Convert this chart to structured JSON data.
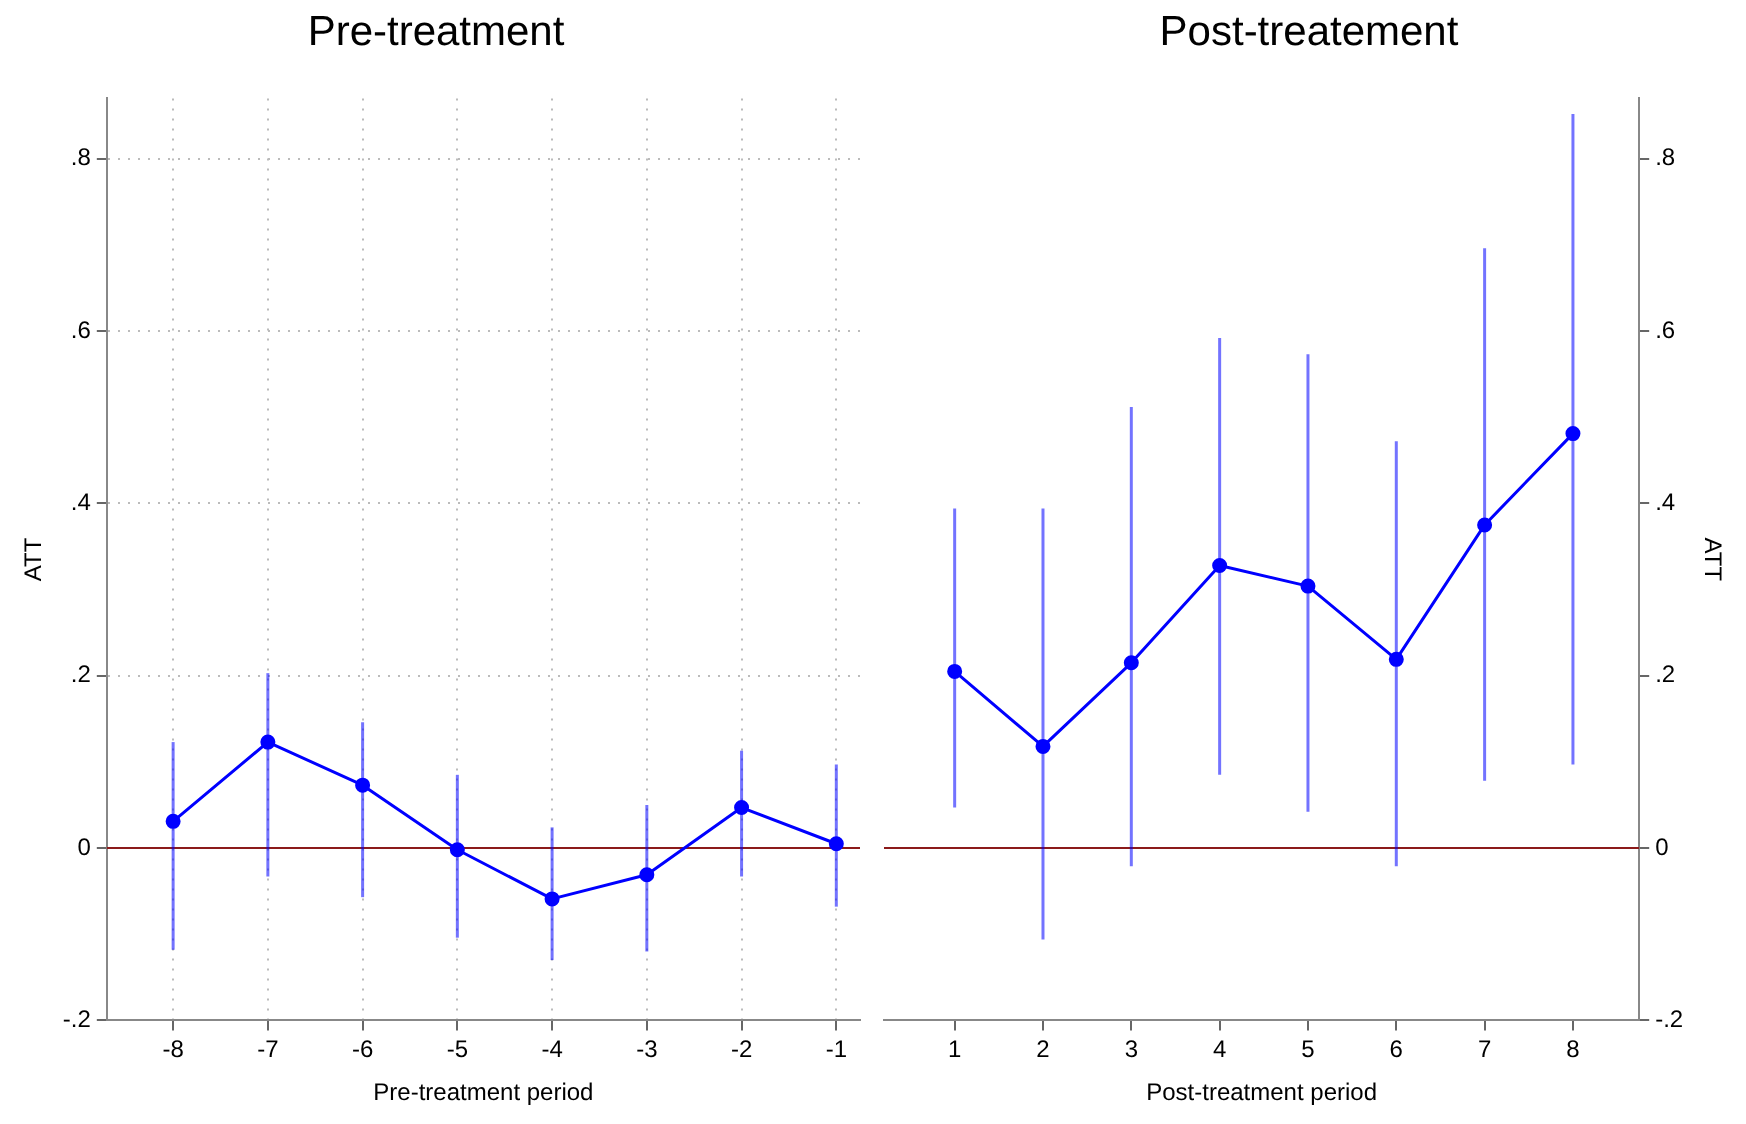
{
  "chart_data": [
    {
      "type": "line",
      "title": "Pre-treatment",
      "xlabel": "Pre-treatment period",
      "ylabel": "ATT",
      "x": [
        -8,
        -7,
        -6,
        -5,
        -4,
        -3,
        -2,
        -1
      ],
      "series": [
        {
          "color": "#0000ff",
          "values": [
            0.031,
            0.123,
            0.073,
            -0.002,
            -0.059,
            -0.031,
            0.047,
            0.005
          ],
          "errors": [
            [
              -0.118,
              0.123
            ],
            [
              -0.033,
              0.203
            ],
            [
              -0.057,
              0.146
            ],
            [
              -0.104,
              0.085
            ],
            [
              -0.13,
              0.024
            ],
            [
              -0.12,
              0.05
            ],
            [
              -0.033,
              0.113
            ],
            [
              -0.068,
              0.097
            ]
          ]
        }
      ],
      "xlim": [
        -8.7,
        -0.75
      ],
      "xticks": [
        -8,
        -7,
        -6,
        -5,
        -4,
        -3,
        -2,
        -1
      ],
      "ylim": [
        -0.2,
        0.87
      ],
      "yticks": [
        {
          "value": -0.2,
          "label": "-.2"
        },
        0,
        {
          "value": 0.2,
          "label": ".2"
        },
        {
          "value": 0.4,
          "label": ".4"
        },
        {
          "value": 0.6,
          "label": ".6"
        },
        {
          "value": 0.8,
          "label": ".8"
        }
      ],
      "ref_lines": [
        {
          "axis": "y",
          "value": 0,
          "color": "#8b1a1a"
        }
      ],
      "grid": true,
      "marker": "circle",
      "line_style": "solid"
    },
    {
      "type": "line",
      "title": "Post-treatement",
      "xlabel": "Post-treatment period",
      "y2label": "ATT",
      "x": [
        1,
        2,
        3,
        4,
        5,
        6,
        7,
        8
      ],
      "series": [
        {
          "color": "#0000ff",
          "axis": "y2",
          "values": [
            0.205,
            0.118,
            0.215,
            0.328,
            0.304,
            0.219,
            0.375,
            0.481
          ],
          "errors": [
            [
              0.047,
              0.394
            ],
            [
              -0.106,
              0.394
            ],
            [
              -0.021,
              0.512
            ],
            [
              0.085,
              0.592
            ],
            [
              0.042,
              0.573
            ],
            [
              -0.021,
              0.472
            ],
            [
              0.078,
              0.696
            ],
            [
              0.097,
              0.852
            ]
          ]
        }
      ],
      "xlim": [
        0.2,
        8.75
      ],
      "xticks": [
        1,
        2,
        3,
        4,
        5,
        6,
        7,
        8
      ],
      "y2lim": [
        -0.2,
        0.87
      ],
      "y2ticks": [
        {
          "value": -0.2,
          "label": "-.2"
        },
        0,
        {
          "value": 0.2,
          "label": ".2"
        },
        {
          "value": 0.4,
          "label": ".4"
        },
        {
          "value": 0.6,
          "label": ".6"
        },
        {
          "value": 0.8,
          "label": ".8"
        }
      ],
      "ref_lines": [
        {
          "axis": "y2",
          "value": 0,
          "color": "#8b1a1a"
        }
      ],
      "grid": false,
      "marker": "circle",
      "line_style": "solid"
    }
  ]
}
